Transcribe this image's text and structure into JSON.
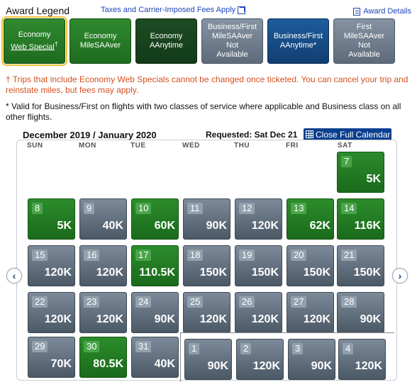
{
  "header": {
    "legend_title": "Award Legend",
    "taxes_link": "Taxes and Carrier-Imposed Fees Apply",
    "award_details": "Award Details"
  },
  "legend": [
    {
      "line1": "Economy",
      "line2": "Web Special",
      "mark": "†",
      "style": "green",
      "selected": true
    },
    {
      "line1": "Economy",
      "line2": "MileSAAver",
      "style": "green"
    },
    {
      "line1": "Economy",
      "line2": "AAnytime",
      "style": "dkgreen"
    },
    {
      "line1": "Business/First",
      "line2": "MileSAAver",
      "line3": "Not",
      "line4": "Available",
      "style": "grey"
    },
    {
      "line1": "Business/First",
      "line2": "AAnytime*",
      "style": "blue"
    },
    {
      "line1": "First",
      "line2": "MileSAAver",
      "line3": "Not",
      "line4": "Available",
      "style": "grey"
    }
  ],
  "notes": {
    "red": "† Trips that include Economy Web Specials cannot be changed once ticketed. You can cancel your trip and reinstate miles, but fees may apply.",
    "black": "* Valid for Business/First on flights with two classes of service where applicable and Business class on all other flights."
  },
  "calendar": {
    "month_label": "December 2019 / January 2020",
    "requested": "Requested: Sat Dec 21",
    "close_button": "Close Full Calendar",
    "weekdays": [
      "SUN",
      "MON",
      "TUE",
      "WED",
      "THU",
      "FRI",
      "SAT"
    ],
    "prev_arrow": "‹",
    "next_arrow": "›",
    "colors": {
      "green": "#1f7a1f",
      "grey": "#5d6a79",
      "red_note": "#d6501e",
      "link": "#1f46b8"
    },
    "days": [
      {
        "day": "7",
        "value": "5K",
        "type": "green"
      },
      {
        "day": "8",
        "value": "5K",
        "type": "green"
      },
      {
        "day": "9",
        "value": "40K",
        "type": "grey"
      },
      {
        "day": "10",
        "value": "60K",
        "type": "green"
      },
      {
        "day": "11",
        "value": "90K",
        "type": "grey"
      },
      {
        "day": "12",
        "value": "120K",
        "type": "grey"
      },
      {
        "day": "13",
        "value": "62K",
        "type": "green"
      },
      {
        "day": "14",
        "value": "116K",
        "type": "green"
      },
      {
        "day": "15",
        "value": "120K",
        "type": "grey"
      },
      {
        "day": "16",
        "value": "120K",
        "type": "grey"
      },
      {
        "day": "17",
        "value": "110.5K",
        "type": "green"
      },
      {
        "day": "18",
        "value": "150K",
        "type": "grey"
      },
      {
        "day": "19",
        "value": "150K",
        "type": "grey"
      },
      {
        "day": "20",
        "value": "150K",
        "type": "grey"
      },
      {
        "day": "21",
        "value": "150K",
        "type": "grey"
      },
      {
        "day": "22",
        "value": "120K",
        "type": "grey"
      },
      {
        "day": "23",
        "value": "120K",
        "type": "grey"
      },
      {
        "day": "24",
        "value": "90K",
        "type": "grey"
      },
      {
        "day": "25",
        "value": "120K",
        "type": "grey"
      },
      {
        "day": "26",
        "value": "120K",
        "type": "grey"
      },
      {
        "day": "27",
        "value": "120K",
        "type": "grey"
      },
      {
        "day": "28",
        "value": "90K",
        "type": "grey"
      },
      {
        "day": "29",
        "value": "70K",
        "type": "grey"
      },
      {
        "day": "30",
        "value": "80.5K",
        "type": "green"
      },
      {
        "day": "31",
        "value": "40K",
        "type": "grey"
      },
      {
        "day": "1",
        "value": "90K",
        "type": "grey"
      },
      {
        "day": "2",
        "value": "120K",
        "type": "grey"
      },
      {
        "day": "3",
        "value": "90K",
        "type": "grey"
      },
      {
        "day": "4",
        "value": "120K",
        "type": "grey"
      }
    ]
  }
}
